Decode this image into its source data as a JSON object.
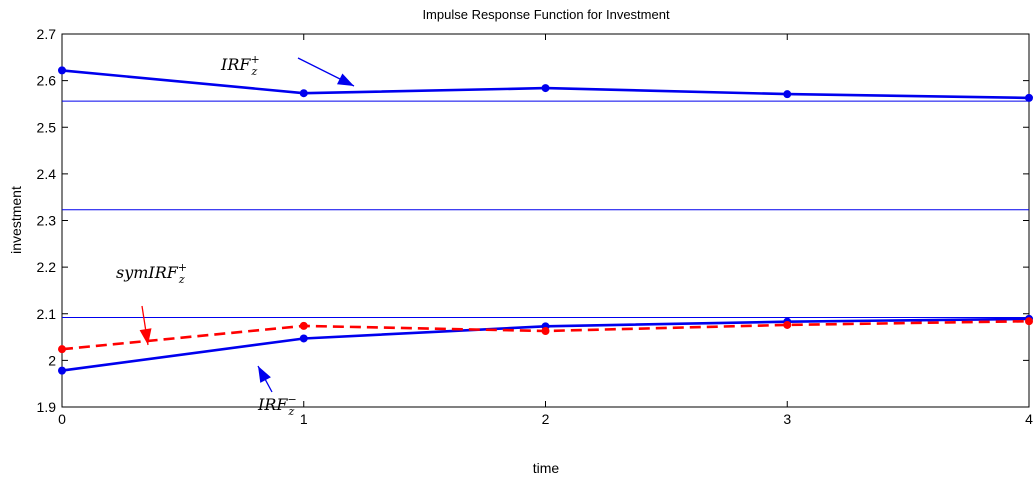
{
  "chart_data": {
    "type": "line",
    "title": "Impulse Response Function for Investment",
    "xlabel": "time",
    "ylabel": "investment",
    "xlim": [
      0,
      4
    ],
    "ylim": [
      1.9,
      2.7
    ],
    "x_ticks": [
      "0",
      "1",
      "2",
      "3",
      "4"
    ],
    "y_ticks": [
      "1.9",
      "2",
      "2.1",
      "2.2",
      "2.3",
      "2.4",
      "2.5",
      "2.6",
      "2.7"
    ],
    "grid": false,
    "x": [
      0,
      1,
      2,
      3,
      4
    ],
    "series": [
      {
        "id": "irf_plus",
        "values": [
          2.622,
          2.573,
          2.584,
          2.571,
          2.563
        ],
        "color": "#0000ee",
        "style": "solid",
        "marker": "dot"
      },
      {
        "id": "irf_minus",
        "values": [
          1.978,
          2.047,
          2.073,
          2.083,
          2.089
        ],
        "color": "#0000ee",
        "style": "solid",
        "marker": "dot"
      },
      {
        "id": "sym_irf_plus",
        "values": [
          2.024,
          2.074,
          2.063,
          2.076,
          2.084
        ],
        "color": "#ff0000",
        "style": "dashed",
        "marker": "dot"
      }
    ],
    "reference_lines": [
      {
        "y": 2.556,
        "color": "#0000ee"
      },
      {
        "y": 2.323,
        "color": "#0000ee"
      },
      {
        "y": 2.092,
        "color": "#0000ee"
      }
    ],
    "annotations": [
      {
        "target": "irf_plus",
        "label_main": "IRF",
        "label_sub": "z",
        "label_sup": "+",
        "color": "#0000ee"
      },
      {
        "target": "sym_irf_plus",
        "label_main": "symIRF",
        "label_sub": "z",
        "label_sup": "+",
        "color": "#ff0000"
      },
      {
        "target": "irf_minus",
        "label_main": "IRF",
        "label_sub": "z",
        "label_sup": "−",
        "color": "#0000ee"
      }
    ]
  }
}
